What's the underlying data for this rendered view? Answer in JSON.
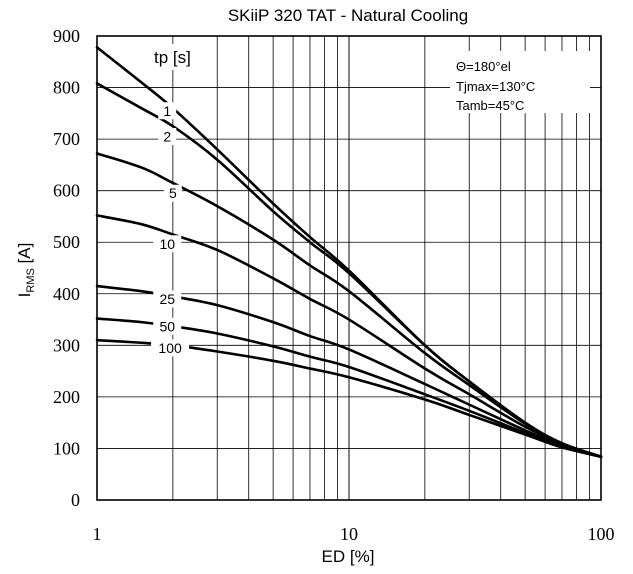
{
  "chart_data": {
    "type": "line",
    "title": "SKiiP 320 TAT - Natural Cooling",
    "xlabel": "ED [%]",
    "ylabel_main": "I",
    "ylabel_sub": "RMS",
    "ylabel_unit": " [A]",
    "x_scale": "log",
    "xlim": [
      1,
      100
    ],
    "ylim": [
      0,
      900
    ],
    "x_ticks": [
      {
        "value": 1,
        "label": "1"
      },
      {
        "value": 10,
        "label": "10"
      },
      {
        "value": 100,
        "label": "100"
      }
    ],
    "y_ticks": [
      {
        "value": 0,
        "label": "0"
      },
      {
        "value": 100,
        "label": "100"
      },
      {
        "value": 200,
        "label": "200"
      },
      {
        "value": 300,
        "label": "300"
      },
      {
        "value": 400,
        "label": "400"
      },
      {
        "value": 500,
        "label": "500"
      },
      {
        "value": 600,
        "label": "600"
      },
      {
        "value": 700,
        "label": "700"
      },
      {
        "value": 800,
        "label": "800"
      },
      {
        "value": 900,
        "label": "900"
      }
    ],
    "grid": true,
    "legend_title": "tp [s]",
    "annotations": [
      "Θ=180°el",
      "Tjmax=130°C",
      "Tamb=45°C"
    ],
    "series": [
      {
        "name": "1",
        "label_x": 1.9,
        "label_y": 755,
        "x": [
          1,
          1.5,
          2,
          3,
          5,
          7,
          10,
          20,
          30,
          50,
          70,
          100
        ],
        "y": [
          878,
          810,
          760,
          680,
          575,
          510,
          445,
          300,
          230,
          150,
          110,
          84
        ]
      },
      {
        "name": "2",
        "label_x": 1.9,
        "label_y": 705,
        "x": [
          1,
          1.5,
          2,
          3,
          5,
          7,
          10,
          20,
          30,
          50,
          70,
          100
        ],
        "y": [
          808,
          760,
          725,
          660,
          560,
          500,
          440,
          300,
          230,
          150,
          110,
          84
        ]
      },
      {
        "name": "5",
        "label_x": 2,
        "label_y": 595,
        "x": [
          1,
          1.5,
          2,
          3,
          5,
          7,
          10,
          20,
          30,
          50,
          70,
          100
        ],
        "y": [
          672,
          645,
          615,
          570,
          505,
          455,
          405,
          285,
          223,
          148,
          110,
          84
        ]
      },
      {
        "name": "10",
        "label_x": 1.9,
        "label_y": 497,
        "x": [
          1,
          1.5,
          2,
          3,
          5,
          7,
          10,
          20,
          30,
          50,
          70,
          100
        ],
        "y": [
          552,
          535,
          515,
          485,
          430,
          390,
          350,
          255,
          205,
          142,
          108,
          84
        ]
      },
      {
        "name": "25",
        "label_x": 1.9,
        "label_y": 390,
        "x": [
          1,
          1.5,
          2,
          3,
          5,
          7,
          10,
          20,
          30,
          50,
          70,
          100
        ],
        "y": [
          415,
          405,
          395,
          378,
          345,
          318,
          292,
          225,
          185,
          135,
          105,
          84
        ]
      },
      {
        "name": "50",
        "label_x": 1.9,
        "label_y": 337,
        "x": [
          1,
          1.5,
          2,
          3,
          5,
          7,
          10,
          20,
          30,
          50,
          70,
          100
        ],
        "y": [
          352,
          345,
          337,
          323,
          298,
          278,
          258,
          205,
          173,
          130,
          103,
          84
        ]
      },
      {
        "name": "100",
        "label_x": 1.95,
        "label_y": 295,
        "x": [
          1,
          1.5,
          2,
          3,
          5,
          7,
          10,
          20,
          30,
          50,
          70,
          100
        ],
        "y": [
          310,
          305,
          300,
          288,
          270,
          255,
          238,
          195,
          165,
          127,
          102,
          84
        ]
      }
    ]
  }
}
